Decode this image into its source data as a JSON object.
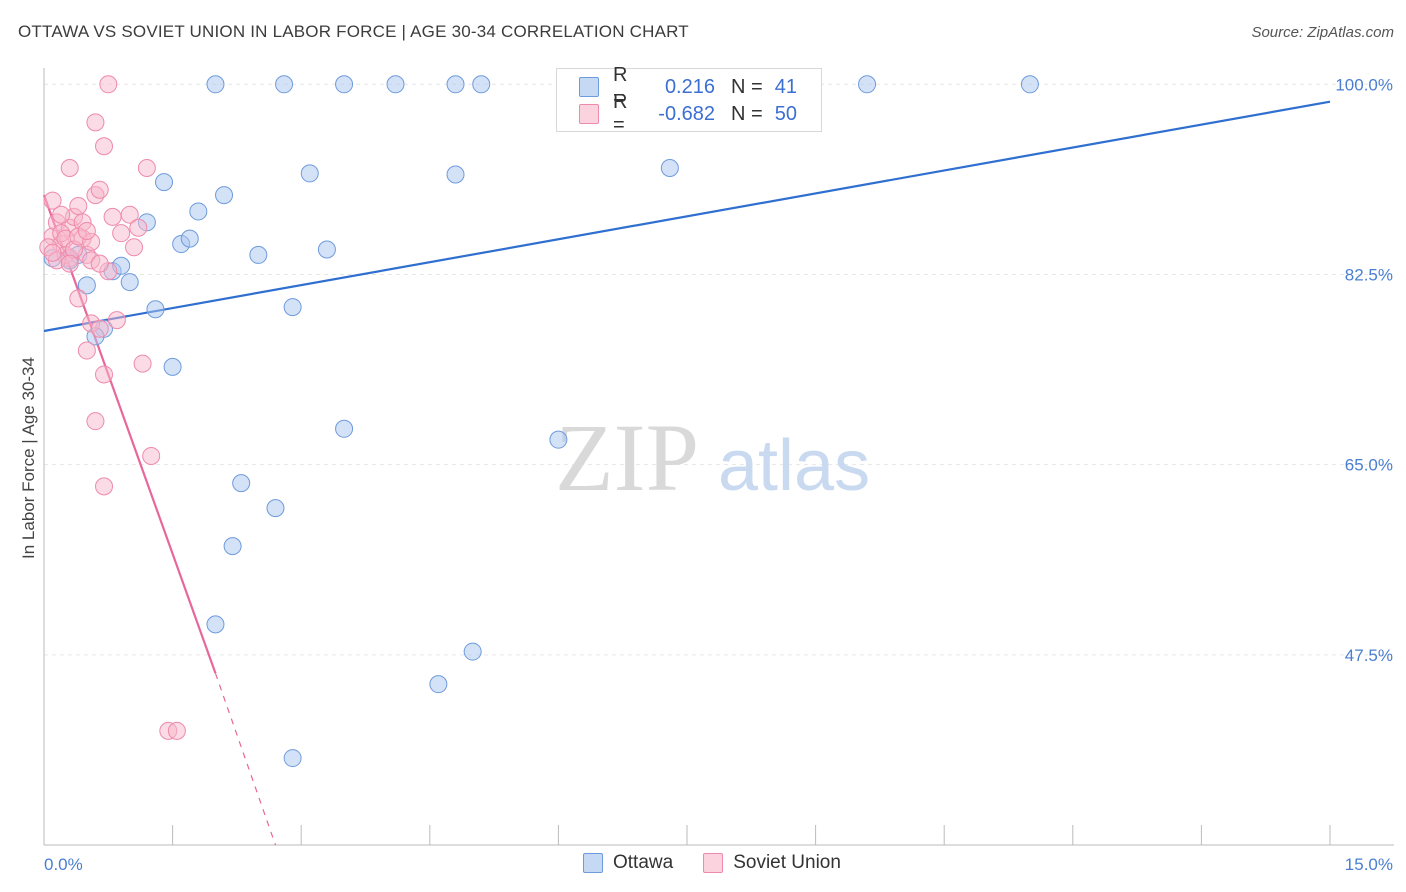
{
  "header": {
    "title": "OTTAWA VS SOVIET UNION IN LABOR FORCE | AGE 30-34 CORRELATION CHART",
    "source": "Source: ZipAtlas.com"
  },
  "watermark": {
    "zip": "ZIP",
    "atlas": "atlas"
  },
  "legend": {
    "rows": [
      {
        "r_label": "R =",
        "r_value": "0.216",
        "n_label": "N =",
        "n_value": "41"
      },
      {
        "r_label": "R =",
        "r_value": "-0.682",
        "n_label": "N =",
        "n_value": "50"
      }
    ]
  },
  "bottom_legend": {
    "items": [
      "Ottawa",
      "Soviet Union"
    ]
  },
  "axis": {
    "y_title": "In Labor Force | Age 30-34",
    "x_min_label": "0.0%",
    "x_max_label": "15.0%",
    "y_ticks": [
      "100.0%",
      "82.5%",
      "65.0%",
      "47.5%"
    ]
  },
  "colors": {
    "ottawa_fill": "#a9c6ef",
    "ottawa_stroke": "#6e9bdc",
    "ottawa_line": "#2e6fd0",
    "soviet_fill": "#f7b8cc",
    "soviet_stroke": "#ee8aab",
    "soviet_line": "#e8679a",
    "grid": "#e6e6e6",
    "tick_text": "#4a7fd0"
  },
  "chart_data": {
    "type": "scatter",
    "xlim": [
      0,
      15
    ],
    "ylim": [
      30,
      101.5
    ],
    "y_ticks": [
      100,
      82.5,
      65,
      47.5
    ],
    "grid": true,
    "legend_position": "top-center",
    "series": [
      {
        "name": "Ottawa",
        "points": [
          [
            0.1,
            84.0
          ],
          [
            0.5,
            81.5
          ],
          [
            0.7,
            77.5
          ],
          [
            0.6,
            76.8
          ],
          [
            0.4,
            84.3
          ],
          [
            0.8,
            82.8
          ],
          [
            0.9,
            83.3
          ],
          [
            1.0,
            81.8
          ],
          [
            1.2,
            87.3
          ],
          [
            1.3,
            79.3
          ],
          [
            1.4,
            91.0
          ],
          [
            1.5,
            74.0
          ],
          [
            1.6,
            85.3
          ],
          [
            1.7,
            85.8
          ],
          [
            1.8,
            88.3
          ],
          [
            2.0,
            100.0
          ],
          [
            2.1,
            89.8
          ],
          [
            2.3,
            63.3
          ],
          [
            2.2,
            57.5
          ],
          [
            2.0,
            50.3
          ],
          [
            2.5,
            84.3
          ],
          [
            2.7,
            61.0
          ],
          [
            2.9,
            79.5
          ],
          [
            2.8,
            100.0
          ],
          [
            3.1,
            91.8
          ],
          [
            3.3,
            84.8
          ],
          [
            3.5,
            68.3
          ],
          [
            3.5,
            100.0
          ],
          [
            4.1,
            100.0
          ],
          [
            4.8,
            91.7
          ],
          [
            4.8,
            100.0
          ],
          [
            5.1,
            100.0
          ],
          [
            6.0,
            67.3
          ],
          [
            7.3,
            92.3
          ],
          [
            7.2,
            100.0
          ],
          [
            9.6,
            100.0
          ],
          [
            11.5,
            100.0
          ],
          [
            4.6,
            44.8
          ],
          [
            5.0,
            47.8
          ],
          [
            2.9,
            38.0
          ],
          [
            0.3,
            83.8
          ]
        ]
      },
      {
        "name": "Soviet Union",
        "points": [
          [
            0.1,
            86.0
          ],
          [
            0.15,
            87.3
          ],
          [
            0.2,
            85.3
          ],
          [
            0.25,
            84.3
          ],
          [
            0.3,
            86.8
          ],
          [
            0.35,
            87.8
          ],
          [
            0.4,
            88.8
          ],
          [
            0.1,
            89.3
          ],
          [
            0.05,
            85.0
          ],
          [
            0.2,
            86.3
          ],
          [
            0.3,
            84.0
          ],
          [
            0.45,
            85.8
          ],
          [
            0.5,
            84.3
          ],
          [
            0.55,
            83.8
          ],
          [
            0.6,
            89.8
          ],
          [
            0.65,
            90.3
          ],
          [
            0.7,
            94.3
          ],
          [
            0.6,
            96.5
          ],
          [
            0.75,
            100.0
          ],
          [
            0.3,
            92.3
          ],
          [
            0.8,
            87.8
          ],
          [
            0.9,
            86.3
          ],
          [
            1.0,
            88.0
          ],
          [
            1.05,
            85.0
          ],
          [
            1.1,
            86.8
          ],
          [
            1.2,
            92.3
          ],
          [
            0.4,
            80.3
          ],
          [
            0.55,
            78.0
          ],
          [
            0.65,
            77.5
          ],
          [
            0.7,
            73.3
          ],
          [
            0.5,
            75.5
          ],
          [
            0.85,
            78.3
          ],
          [
            0.6,
            69.0
          ],
          [
            1.25,
            65.8
          ],
          [
            0.7,
            63.0
          ],
          [
            1.15,
            74.3
          ],
          [
            1.45,
            40.5
          ],
          [
            1.55,
            40.5
          ],
          [
            0.15,
            83.8
          ],
          [
            0.25,
            85.8
          ],
          [
            0.35,
            84.8
          ],
          [
            0.45,
            87.3
          ],
          [
            0.75,
            82.8
          ],
          [
            0.2,
            88.0
          ],
          [
            0.4,
            86.0
          ],
          [
            0.3,
            83.5
          ],
          [
            0.55,
            85.5
          ],
          [
            0.1,
            84.5
          ],
          [
            0.65,
            83.5
          ],
          [
            0.5,
            86.5
          ]
        ]
      }
    ],
    "trendlines": [
      {
        "series": "Ottawa",
        "x": [
          0,
          15
        ],
        "y": [
          77.3,
          98.4
        ]
      },
      {
        "series": "Soviet Union",
        "x": [
          0,
          2.0
        ],
        "y": [
          89.8,
          45.8
        ],
        "dashed_extension": {
          "x": [
            2.0,
            2.7
          ],
          "y": [
            45.8,
            30.0
          ]
        }
      }
    ]
  }
}
